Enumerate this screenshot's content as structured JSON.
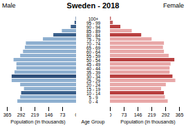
{
  "chart_data": {
    "type": "bar",
    "orientation": "horizontal",
    "title": "Sweden - 2018",
    "categories": [
      "0 - 4",
      "5 - 9",
      "10 - 14",
      "15 - 19",
      "20 - 24",
      "25 - 29",
      "30 - 34",
      "35 - 39",
      "40 - 44",
      "45 - 49",
      "50 - 54",
      "55 - 59",
      "60 - 64",
      "65 - 69",
      "70 - 74",
      "75 - 79",
      "80 - 84",
      "85 - 89",
      "90 - 94",
      "95 - 99",
      "100+"
    ],
    "series": [
      {
        "name": "Male",
        "values": [
          310,
          295,
          290,
          275,
          295,
          340,
          340,
          325,
          315,
          315,
          330,
          295,
          280,
          270,
          265,
          175,
          120,
          75,
          28,
          8,
          2
        ],
        "colors": [
          "#8fb0d0",
          "#8fb0d0",
          "#3a5f8a",
          "#8fb0d0",
          "#8fb0d0",
          "#8fb0d0",
          "#2e4f7a",
          "#8fb0d0",
          "#8fb0d0",
          "#8fb0d0",
          "#8fb0d0",
          "#8fb0d0",
          "#8fb0d0",
          "#8fb0d0",
          "#8fb0d0",
          "#8fb0d0",
          "#3a5f8a",
          "#8fb0d0",
          "#3a5f8a",
          "#3a5f8a",
          "#3a5f8a"
        ]
      },
      {
        "name": "Female",
        "values": [
          305,
          290,
          285,
          270,
          295,
          345,
          330,
          315,
          315,
          320,
          340,
          310,
          285,
          280,
          285,
          220,
          165,
          115,
          55,
          15,
          5
        ],
        "colors": [
          "#e8a8a8",
          "#e8a8a8",
          "#b84040",
          "#e8a8a8",
          "#e8a8a8",
          "#e8a8a8",
          "#b84040",
          "#e8a8a8",
          "#e8a8a8",
          "#e8a8a8",
          "#b84040",
          "#e8a8a8",
          "#e8a8a8",
          "#e8a8a8",
          "#e8a8a8",
          "#e8a8a8",
          "#b84040",
          "#e8a8a8",
          "#b84040",
          "#c06060",
          "#c06060"
        ]
      }
    ],
    "xlabel": "Population (in thousands)",
    "ylabel": "Age Group",
    "xlim": [
      0,
      365
    ],
    "xticks": [
      0,
      73,
      146,
      219,
      292,
      365
    ]
  }
}
